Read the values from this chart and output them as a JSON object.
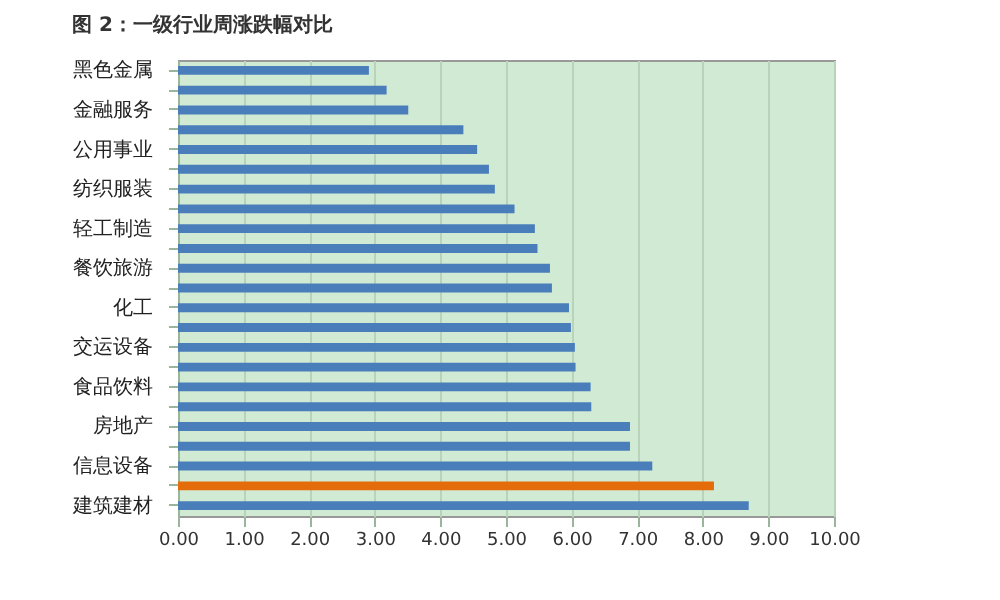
{
  "chart_data": {
    "type": "bar",
    "orientation": "horizontal",
    "title": "图 2：一级行业周涨跌幅对比",
    "categories": [
      "黑色金属",
      null,
      "金融服务",
      null,
      "公用事业",
      null,
      "纺织服装",
      null,
      "轻工制造",
      null,
      "餐饮旅游",
      null,
      "化工",
      null,
      "交运设备",
      null,
      "食品饮料",
      null,
      "房地产",
      null,
      "信息设备",
      null,
      "建筑建材"
    ],
    "values": [
      2.91,
      3.18,
      3.51,
      4.35,
      4.56,
      4.74,
      4.83,
      5.13,
      5.44,
      5.48,
      5.67,
      5.7,
      5.96,
      5.99,
      6.05,
      6.06,
      6.29,
      6.3,
      6.89,
      6.89,
      7.23,
      8.17,
      8.7
    ],
    "colors": [
      "#4a7ebb",
      "#4a7ebb",
      "#4a7ebb",
      "#4a7ebb",
      "#4a7ebb",
      "#4a7ebb",
      "#4a7ebb",
      "#4a7ebb",
      "#4a7ebb",
      "#4a7ebb",
      "#4a7ebb",
      "#4a7ebb",
      "#4a7ebb",
      "#4a7ebb",
      "#4a7ebb",
      "#4a7ebb",
      "#4a7ebb",
      "#4a7ebb",
      "#4a7ebb",
      "#4a7ebb",
      "#4a7ebb",
      "#e46c0a",
      "#4a7ebb"
    ],
    "xlim": [
      0,
      10
    ],
    "xticks": [
      {
        "value": 0,
        "label": "0.00"
      },
      {
        "value": 1,
        "label": "1.00"
      },
      {
        "value": 2,
        "label": "2.00"
      },
      {
        "value": 3,
        "label": "3.00"
      },
      {
        "value": 4,
        "label": "4.00"
      },
      {
        "value": 5,
        "label": "5.00"
      },
      {
        "value": 6,
        "label": "6.00"
      },
      {
        "value": 7,
        "label": "7.00"
      },
      {
        "value": 8,
        "label": "8.00"
      },
      {
        "value": 9,
        "label": "9.00"
      },
      {
        "value": 10,
        "label": "10.00"
      }
    ],
    "grid": "x"
  }
}
